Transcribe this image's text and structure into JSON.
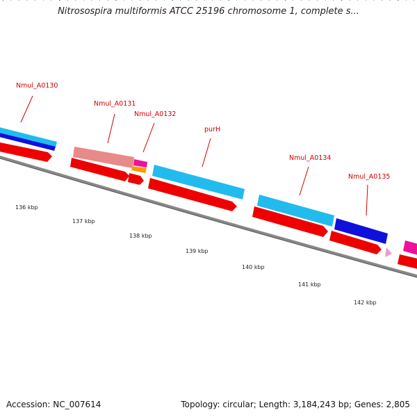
{
  "title": "Nitrosospira multiformis ATCC 25196 chromosome 1, complete s...",
  "footer": {
    "accession": "Accession: NC_007614",
    "summary": "Topology: circular; Length: 3,184,243 bp; Genes: 2,805"
  },
  "colors": {
    "backbone": "#888888",
    "forward_cds": "#ee0000",
    "label": "#d00000",
    "tick": "#1a7a1a",
    "cyan": "#22bbee",
    "blue": "#1010dd",
    "salmon": "#e88a8a",
    "magenta": "#ee1199",
    "orange": "#ff9900",
    "pink": "#ee99cc"
  },
  "gene_labels": [
    {
      "name": "Nmul_A0130"
    },
    {
      "name": "Nmul_A0131"
    },
    {
      "name": "Nmul_A0132"
    },
    {
      "name": "purH"
    },
    {
      "name": "Nmul_A0134"
    },
    {
      "name": "Nmul_A0135"
    }
  ],
  "kbp_labels": [
    "136 kbp",
    "137 kbp",
    "138 kbp",
    "139 kbp",
    "140 kbp",
    "141 kbp",
    "142 kbp"
  ]
}
